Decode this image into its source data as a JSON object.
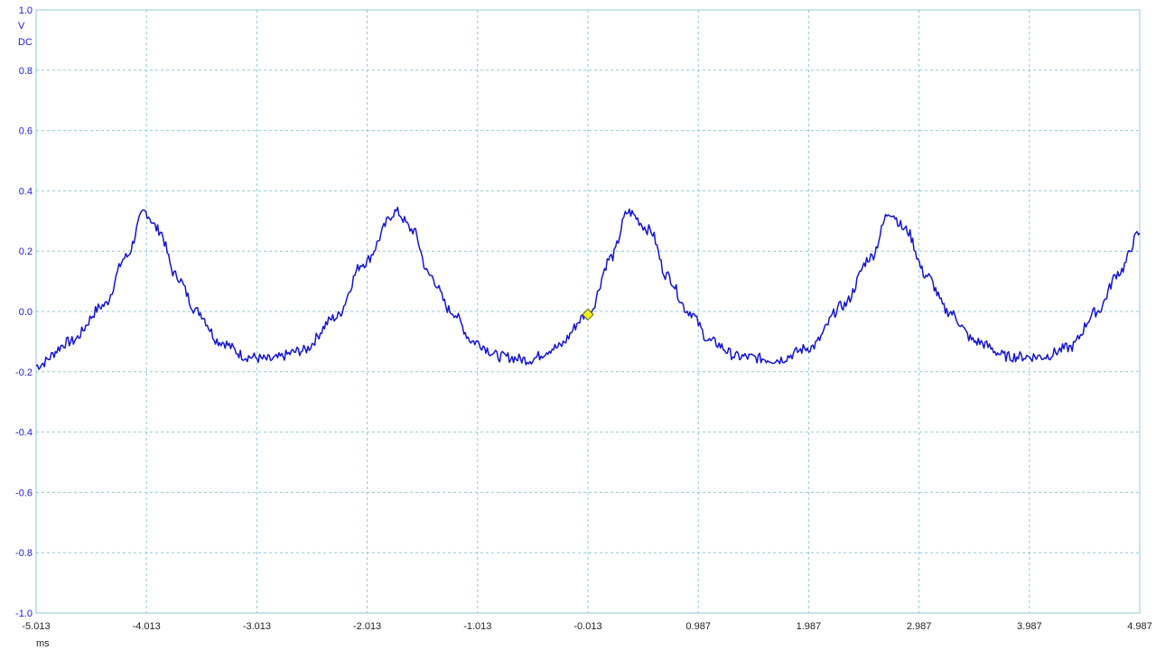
{
  "chart_data": {
    "type": "line",
    "title": "",
    "ylabel_unit": "V",
    "ylabel_coupling": "DC",
    "xlabel_unit": "ms",
    "xlim": [
      -5.013,
      4.987
    ],
    "ylim": [
      -1.0,
      1.0
    ],
    "y_ticks": [
      "1.0",
      "0.8",
      "0.6",
      "0.4",
      "0.2",
      "0.0",
      "-0.2",
      "-0.4",
      "-0.6",
      "-0.8",
      "-1.0"
    ],
    "x_ticks": [
      "-5.013",
      "-4.013",
      "-3.013",
      "-2.013",
      "-1.013",
      "-0.013",
      "0.987",
      "1.987",
      "2.987",
      "3.987",
      "4.987"
    ],
    "grid": true,
    "series": [
      {
        "color": "#1414d2",
        "x": [
          -5.013,
          -4.7,
          -4.4,
          -4.2,
          -4.03,
          -3.9,
          -3.75,
          -3.55,
          -3.35,
          -3.1,
          -2.9,
          -2.6,
          -2.3,
          -2.05,
          -1.75,
          -1.6,
          -1.45,
          -1.25,
          -1.05,
          -0.8,
          -0.55,
          -0.3,
          -0.013,
          0.2,
          0.35,
          0.55,
          0.7,
          0.9,
          1.1,
          1.35,
          1.7,
          2.0,
          2.3,
          2.55,
          2.72,
          2.87,
          3.05,
          3.25,
          3.5,
          3.8,
          4.1,
          4.35,
          4.6,
          4.8,
          4.987
        ],
        "y": [
          -0.18,
          -0.1,
          0.02,
          0.18,
          0.33,
          0.27,
          0.12,
          0.0,
          -0.1,
          -0.15,
          -0.16,
          -0.13,
          -0.02,
          0.16,
          0.33,
          0.27,
          0.12,
          0.0,
          -0.1,
          -0.15,
          -0.16,
          -0.12,
          -0.01,
          0.18,
          0.33,
          0.27,
          0.12,
          0.0,
          -0.1,
          -0.15,
          -0.16,
          -0.12,
          0.02,
          0.18,
          0.33,
          0.27,
          0.12,
          0.0,
          -0.1,
          -0.15,
          -0.15,
          -0.12,
          0.0,
          0.13,
          0.26
        ]
      }
    ],
    "trigger_marker": {
      "x": -0.013,
      "y": -0.01,
      "color": "#f2f21e"
    }
  }
}
